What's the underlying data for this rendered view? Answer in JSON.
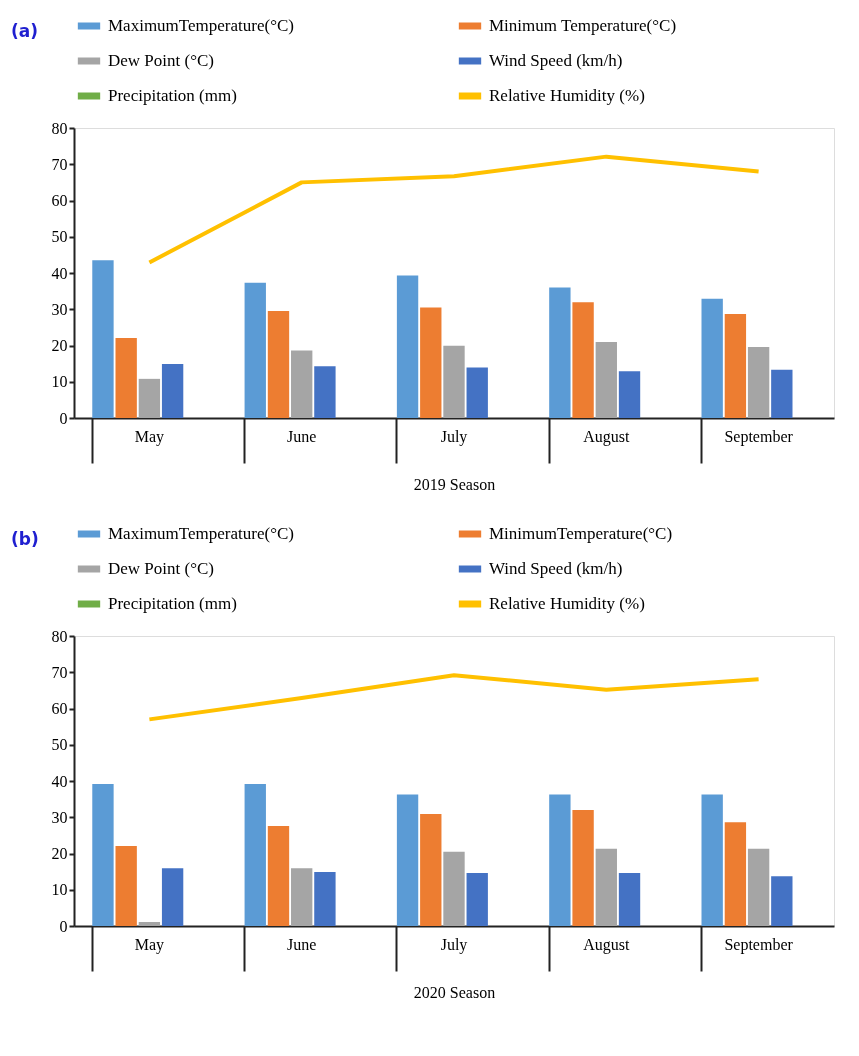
{
  "chart_data": [
    {
      "type": "bar",
      "title": "(a)",
      "xlabel": "2019 Season",
      "categories": [
        "May",
        "June",
        "July",
        "August",
        "September"
      ],
      "ylim": [
        0,
        80
      ],
      "yticks": [
        0,
        10,
        20,
        30,
        40,
        50,
        60,
        70,
        80
      ],
      "grid": false,
      "legend": "top",
      "series": [
        {
          "name": "MaximumTemperature(°C)",
          "color": "#5b9bd5",
          "values": [
            43.5,
            37.3,
            39.3,
            36.0,
            32.9
          ]
        },
        {
          "name": "Minimum Temperature(°C)",
          "color": "#ed7d31",
          "values": [
            22.1,
            29.5,
            30.5,
            31.9,
            28.7
          ]
        },
        {
          "name": "Dew Point (°C)",
          "color": "#a5a5a5",
          "values": [
            10.8,
            18.6,
            19.9,
            21.0,
            19.6
          ]
        },
        {
          "name": "Wind Speed (km/h)",
          "color": "#4472c4",
          "values": [
            14.9,
            14.3,
            13.9,
            12.9,
            13.3
          ]
        },
        {
          "name": "Precipitation (mm)",
          "color": "#70ad47",
          "values": [
            0,
            0,
            0,
            0,
            0
          ]
        },
        {
          "name": "Relative Humidity (%)",
          "color": "#ffc000",
          "type": "line",
          "values": [
            42.9,
            65.0,
            66.7,
            72.1,
            68.0
          ]
        }
      ]
    },
    {
      "type": "bar",
      "title": "(b)",
      "xlabel": "2020 Season",
      "categories": [
        "May",
        "June",
        "July",
        "August",
        "September"
      ],
      "ylim": [
        0,
        80
      ],
      "yticks": [
        0,
        10,
        20,
        30,
        40,
        50,
        60,
        70,
        80
      ],
      "grid": false,
      "legend": "top",
      "series": [
        {
          "name": "MaximumTemperature(°C)",
          "color": "#5b9bd5",
          "values": [
            39.2,
            39.2,
            36.3,
            36.3,
            36.3
          ]
        },
        {
          "name": "MinimumTemperature(°C)",
          "color": "#ed7d31",
          "values": [
            22.1,
            27.6,
            30.9,
            32.0,
            28.6
          ]
        },
        {
          "name": "Dew Point (°C)",
          "color": "#a5a5a5",
          "values": [
            1.1,
            15.9,
            20.5,
            21.3,
            21.3
          ]
        },
        {
          "name": "Wind Speed (km/h)",
          "color": "#4472c4",
          "values": [
            15.9,
            14.9,
            14.6,
            14.6,
            13.7
          ]
        },
        {
          "name": "Precipitation (mm)",
          "color": "#70ad47",
          "values": [
            0,
            0,
            0,
            0,
            0
          ]
        },
        {
          "name": "Relative Humidity (%)",
          "color": "#ffc000",
          "type": "line",
          "values": [
            57.0,
            62.9,
            69.2,
            65.2,
            68.1
          ]
        }
      ]
    }
  ]
}
